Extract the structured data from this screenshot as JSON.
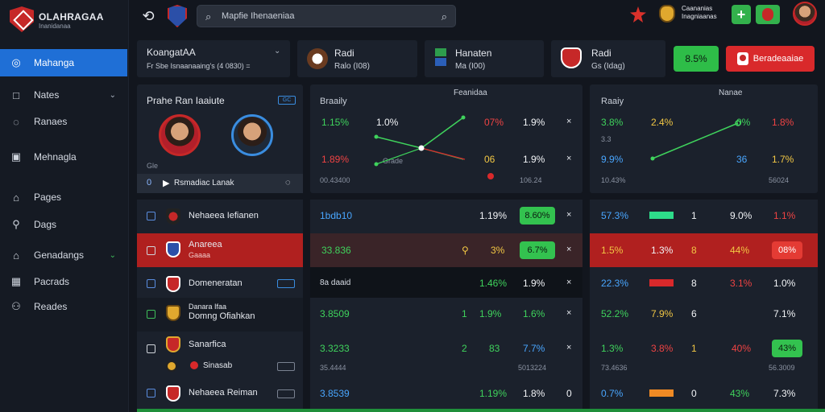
{
  "app": {
    "logo_title": "OLAHRAGAA",
    "logo_sub": "Inanidanaa"
  },
  "sidebar": {
    "items": [
      {
        "label": "Mahanga",
        "icon": "globe-icon",
        "active": true
      },
      {
        "label": "Nates",
        "icon": "square-icon",
        "chevron": true
      },
      {
        "label": "Ranaes",
        "icon": "chat-icon"
      },
      {
        "label": "Mehnagla",
        "icon": "image-icon"
      },
      {
        "label": "Pages",
        "icon": "home-icon"
      },
      {
        "label": "Dags",
        "icon": "search-user-icon"
      },
      {
        "label": "Genadangs",
        "icon": "house-icon",
        "chevron": true
      },
      {
        "label": "Pacrads",
        "icon": "grid-icon"
      },
      {
        "label": "Reades",
        "icon": "people-icon"
      }
    ]
  },
  "topbar": {
    "search_placeholder": "Mapfie Ihenaeniaa",
    "league_line1": "Caananias",
    "league_line2": "Inagniaanas",
    "plus_label": "+"
  },
  "header_cards": {
    "select_title": "KoangatAA",
    "select_sub": "Fr Sbe Isnaanaaing's (4 0830) =",
    "match1_title": "Radi",
    "match1_sub": "Ralo (I08)",
    "match2_title": "Hanaten",
    "match2_sub": "Ma (I00)",
    "match3_title": "Radi",
    "match3_sub": "Gs (Idag)",
    "green_btn": "8.5%",
    "red_btn": "Beradeaaiae"
  },
  "players_card": {
    "title": "Prahe Ran Iaaiute",
    "tag": "GC",
    "small_tag": "Gle",
    "footer": "Rsmadiac Lanak",
    "footer_num": "0"
  },
  "chart_mid": {
    "label_left": "Braaily",
    "label_center": "Feanidaa",
    "v1": "1.15%",
    "v2": "1.0%",
    "v3": "07%",
    "v4": "1.9%",
    "v5": "1.89%",
    "v6": "Grade",
    "v7": "06",
    "v8": "1.9%",
    "foot_left": "00.43400",
    "foot_right": "106.24"
  },
  "chart_right": {
    "label_left": "Raaiy",
    "label_center": "Nanae",
    "v1": "3.8%",
    "v2": "2.4%",
    "v3": "0%",
    "v4": "1.8%",
    "v5": "3.3",
    "v6": "9.9%",
    "v7": "36",
    "v8": "1.7%",
    "foot_left": "10.43%",
    "foot_right": "56024"
  },
  "rows": [
    {
      "left": {
        "name": "Nehaeea Iefianen"
      },
      "mid": {
        "a": "1bdb10",
        "b": "1.19%",
        "pill": "8.60%"
      },
      "right": {
        "a": "57.3%",
        "b": "1",
        "c": "9.0%",
        "d": "1.1%"
      }
    },
    {
      "left": {
        "name": "Anareea",
        "sub": "Gaaaa"
      },
      "mid": {
        "a": "33.836",
        "b": "3%",
        "pill": "6.7%"
      },
      "right": {
        "a": "1.5%",
        "b": "1.3%",
        "c": "8",
        "d": "44%",
        "pill": "08%"
      }
    },
    {
      "left": {
        "name": "Domeneratan"
      },
      "mid": {
        "a": "8a daaid",
        "b": "1.46%",
        "c": "1.9%"
      },
      "right": {
        "a": "22.3%",
        "b": "8",
        "c": "3.1%",
        "d": "1.0%"
      }
    },
    {
      "left": {
        "name": "Danara Ifaa",
        "sub": "Domng Ofiahkan"
      },
      "mid": {
        "a": "3.8509",
        "b": "1",
        "c": "1.9%",
        "d": "1.6%"
      },
      "right": {
        "a": "52.2%",
        "b": "7.9%",
        "c": "6",
        "d": "7.1%"
      }
    },
    {
      "left": {
        "name": "Sanarfica",
        "sub": "Sinasab"
      },
      "mid": {
        "a": "3.3233",
        "b": "2",
        "c": "83",
        "d": "7.7%",
        "foot_left": "35.4444",
        "foot_right": "5013224"
      },
      "right": {
        "a": "1.3%",
        "b": "3.8%",
        "c": "1",
        "d": "40%",
        "pill": "43%",
        "foot_left": "73.4636",
        "foot_right": "56.3009"
      }
    },
    {
      "left": {
        "name": "Nehaeea Reiman"
      },
      "mid": {
        "a": "3.8539",
        "b": "1.19%",
        "c": "1.8%",
        "d": "0"
      },
      "right": {
        "a": "0.7%",
        "b": "0",
        "c": "43%",
        "d": "7.3%"
      }
    }
  ]
}
